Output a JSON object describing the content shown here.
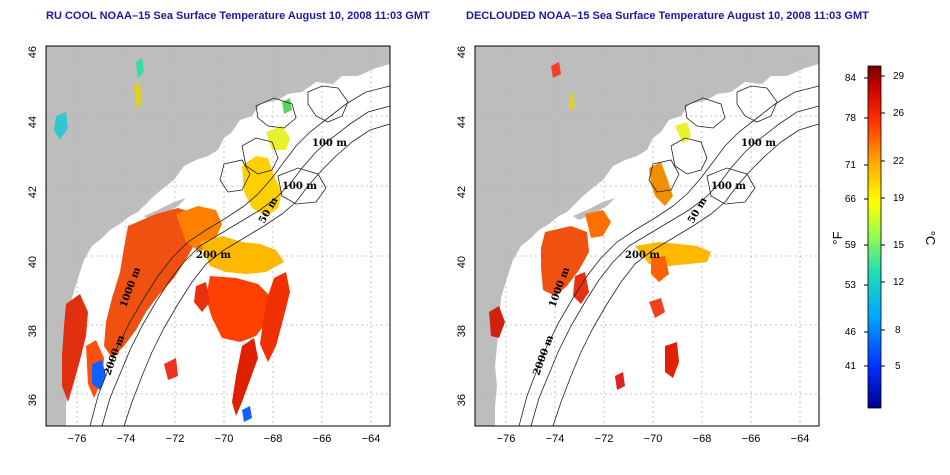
{
  "panels": [
    {
      "title": "RU COOL NOAA–15 Sea Surface Temperature August 10, 2008 11:03 GMT",
      "isobaths": [
        "100 m",
        "100 m",
        "50 m",
        "200 m",
        "1000 m",
        "2000 m"
      ],
      "lat_ticks": [
        "46",
        "44",
        "42",
        "40",
        "38",
        "36"
      ],
      "lon_ticks": [
        "−76",
        "−74",
        "−72",
        "−70",
        "−68",
        "−66",
        "−64"
      ]
    },
    {
      "title": "DECLOUDED NOAA–15 Sea Surface Temperature August 10, 2008 11:03 GMT",
      "isobaths": [
        "100 m",
        "100 m",
        "50 m",
        "200 m",
        "1000 m",
        "2000 m"
      ],
      "lat_ticks": [
        "46",
        "44",
        "42",
        "40",
        "38",
        "36"
      ],
      "lon_ticks": [
        "−76",
        "−74",
        "−72",
        "−70",
        "−68",
        "−66",
        "−64"
      ]
    }
  ],
  "colorbar": {
    "f_unit": "°F",
    "c_unit": "°C",
    "f_labels": [
      "84",
      "78",
      "71",
      "66",
      "59",
      "53",
      "46",
      "41"
    ],
    "c_labels": [
      "29",
      "26",
      "22",
      "19",
      "15",
      "12",
      "8",
      "5"
    ]
  },
  "colors": {
    "land": "#bdbdbd",
    "title": "#1a1aa0",
    "grid": "#b4b4b4"
  }
}
